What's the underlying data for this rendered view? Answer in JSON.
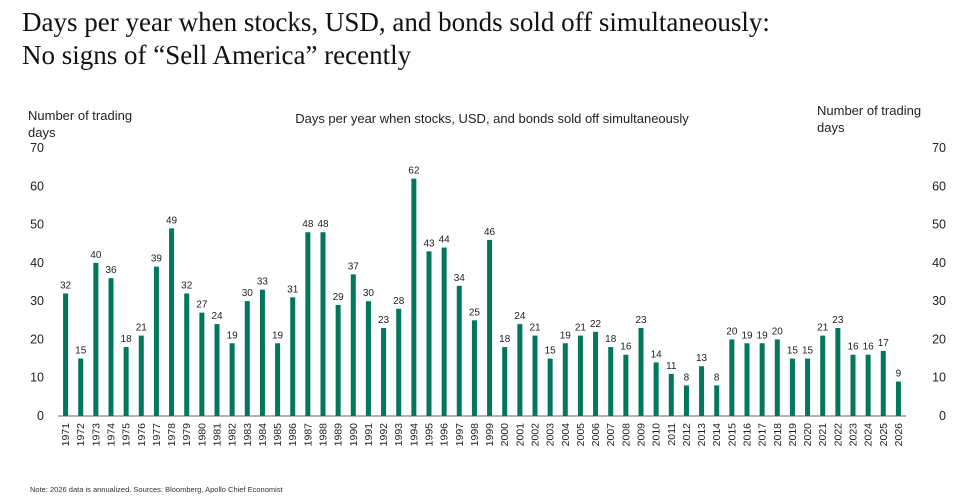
{
  "title_line1": "Days per year when stocks, USD, and bonds sold off simultaneously:",
  "title_line2": "No signs of “Sell America” recently",
  "note": "Note: 2026 data is annualized. Sources: Bloomberg, Apollo Chief Economist",
  "colors": {
    "bar": "#03775a",
    "text": "#222222",
    "axis": "#333333"
  },
  "chart_data": {
    "type": "bar",
    "title": "Days per year when stocks, USD, and bonds sold off simultaneously",
    "ylabel_left": [
      "Number of trading",
      "days"
    ],
    "ylabel_right": [
      "Number of trading",
      "days"
    ],
    "ylim": [
      0,
      70
    ],
    "yticks": [
      0,
      10,
      20,
      30,
      40,
      50,
      60,
      70
    ],
    "grid": false,
    "data_labels": true,
    "categories": [
      "1971",
      "1972",
      "1973",
      "1974",
      "1975",
      "1976",
      "1977",
      "1978",
      "1979",
      "1980",
      "1981",
      "1982",
      "1983",
      "1984",
      "1985",
      "1986",
      "1987",
      "1988",
      "1989",
      "1990",
      "1991",
      "1992",
      "1993",
      "1994",
      "1995",
      "1996",
      "1997",
      "1998",
      "1999",
      "2000",
      "2001",
      "2002",
      "2003",
      "2004",
      "2005",
      "2006",
      "2007",
      "2008",
      "2009",
      "2010",
      "2011",
      "2012",
      "2013",
      "2014",
      "2015",
      "2016",
      "2017",
      "2018",
      "2019",
      "2020",
      "2021",
      "2022",
      "2023",
      "2024",
      "2025",
      "2026"
    ],
    "values": [
      32,
      15,
      40,
      36,
      18,
      21,
      39,
      49,
      32,
      27,
      24,
      19,
      30,
      33,
      19,
      31,
      48,
      48,
      29,
      37,
      30,
      23,
      28,
      62,
      43,
      44,
      34,
      25,
      46,
      18,
      24,
      21,
      15,
      19,
      21,
      22,
      18,
      16,
      23,
      14,
      11,
      8,
      13,
      8,
      20,
      19,
      19,
      20,
      15,
      15,
      21,
      23,
      16,
      16,
      17,
      9
    ]
  }
}
